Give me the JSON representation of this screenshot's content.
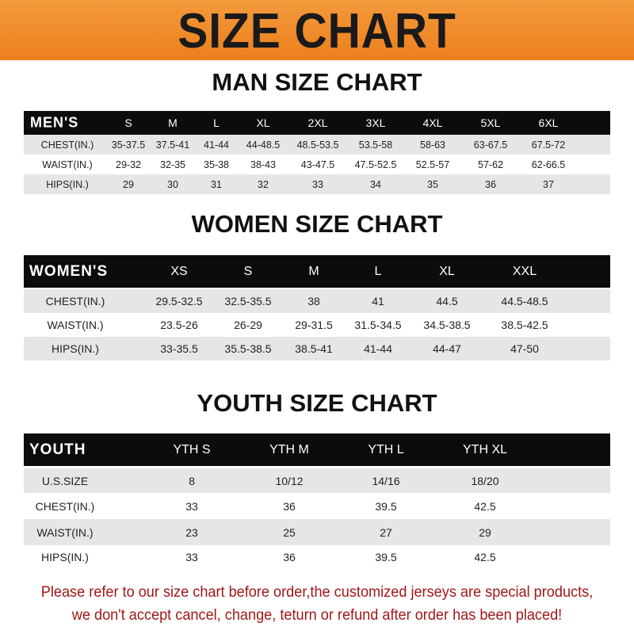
{
  "banner_title": "SIZE CHART",
  "men": {
    "title": "MAN SIZE CHART",
    "header": [
      "MEN'S",
      "S",
      "M",
      "L",
      "XL",
      "2XL",
      "3XL",
      "4XL",
      "5XL",
      "6XL"
    ],
    "rows": [
      [
        "CHEST(IN.)",
        "35-37.5",
        "37.5-41",
        "41-44",
        "44-48.5",
        "48.5-53.5",
        "53.5-58",
        "58-63",
        "63-67.5",
        "67.5-72"
      ],
      [
        "WAIST(IN.)",
        "29-32",
        "32-35",
        "35-38",
        "38-43",
        "43-47.5",
        "47.5-52.5",
        "52.5-57",
        "57-62",
        "62-66.5"
      ],
      [
        "HIPS(IN.)",
        "29",
        "30",
        "31",
        "32",
        "33",
        "34",
        "35",
        "36",
        "37"
      ]
    ]
  },
  "women": {
    "title": "WOMEN SIZE CHART",
    "header": [
      "WOMEN'S",
      "XS",
      "S",
      "M",
      "L",
      "XL",
      "XXL"
    ],
    "rows": [
      [
        "CHEST(IN.)",
        "29.5-32.5",
        "32.5-35.5",
        "38",
        "41",
        "44.5",
        "44.5-48.5"
      ],
      [
        "WAIST(IN.)",
        "23.5-26",
        "26-29",
        "29-31.5",
        "31.5-34.5",
        "34.5-38.5",
        "38.5-42.5"
      ],
      [
        "HIPS(IN.)",
        "33-35.5",
        "35.5-38.5",
        "38.5-41",
        "41-44",
        "44-47",
        "47-50"
      ]
    ]
  },
  "youth": {
    "title": "YOUTH SIZE CHART",
    "header": [
      "YOUTH",
      "YTH S",
      "YTH M",
      "YTH L",
      "YTH XL"
    ],
    "rows": [
      [
        "U.S.SIZE",
        "8",
        "10/12",
        "14/16",
        "18/20"
      ],
      [
        "CHEST(IN.)",
        "33",
        "36",
        "39.5",
        "42.5"
      ],
      [
        "WAIST(IN.)",
        "23",
        "25",
        "27",
        "29"
      ],
      [
        "HIPS(IN.)",
        "33",
        "36",
        "39.5",
        "42.5"
      ]
    ]
  },
  "note": {
    "line1": "Please refer to our size chart before order,the customized jerseys are special products,",
    "line2": "we don't accept cancel, change, teturn or refund after order has been placed!"
  },
  "colors": {
    "banner": "#ec7f1c",
    "header_row": "#0c0c0c",
    "stripe": "#e6e6e6",
    "note": "#a01818"
  }
}
